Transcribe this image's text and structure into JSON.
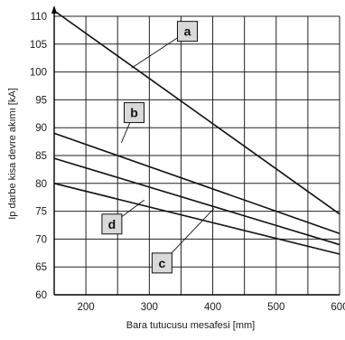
{
  "chart_data": {
    "type": "line",
    "xlabel": "Bara tutucusu mesafesi [mm]",
    "ylabel": "Ip darbe kisa devre akımı [kA]",
    "xlim": [
      150,
      600
    ],
    "ylim": [
      60,
      110
    ],
    "x_ticks": [
      200,
      300,
      400,
      500,
      600
    ],
    "y_ticks": [
      60,
      65,
      70,
      75,
      80,
      85,
      90,
      95,
      100,
      105,
      110
    ],
    "grid": true,
    "series": [
      {
        "name": "a",
        "x": [
          150,
          600
        ],
        "y": [
          111,
          74.5
        ]
      },
      {
        "name": "b",
        "x": [
          150,
          600
        ],
        "y": [
          89,
          71
        ]
      },
      {
        "name": "d",
        "x": [
          150,
          600
        ],
        "y": [
          84.5,
          69
        ]
      },
      {
        "name": "c",
        "x": [
          150,
          600
        ],
        "y": [
          80,
          67.3
        ]
      }
    ],
    "callouts": [
      {
        "label": "a",
        "at_x": 272,
        "at_y": 100.7,
        "box_x": 360,
        "box_y": 107.3
      },
      {
        "label": "b",
        "at_x": 256,
        "at_y": 87.3,
        "box_x": 276,
        "box_y": 92.7
      },
      {
        "label": "d",
        "at_x": 292,
        "at_y": 77,
        "box_x": 241,
        "box_y": 72.7
      },
      {
        "label": "c",
        "at_x": 402,
        "at_y": 75.5,
        "box_x": 320,
        "box_y": 65.7
      }
    ]
  }
}
